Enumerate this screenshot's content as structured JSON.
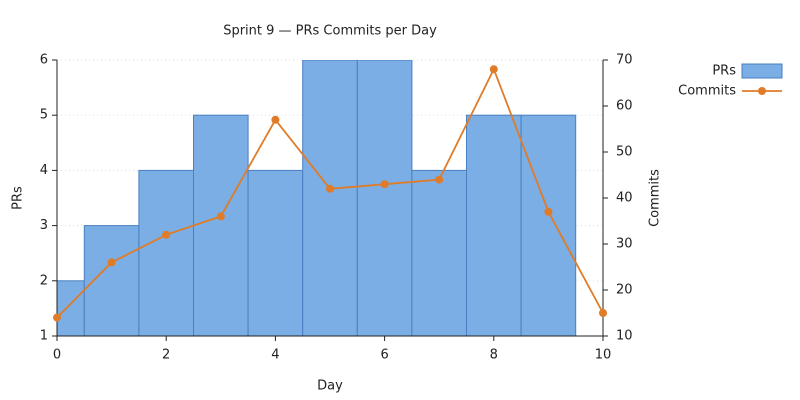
{
  "chart_data": {
    "type": "bar",
    "title": "Sprint 9 — PRs  Commits per Day",
    "x_label": "Day",
    "y_label": "PRs",
    "y2_label": "Commits",
    "xlim": [
      0,
      10
    ],
    "xticks": [
      0,
      2,
      4,
      6,
      8,
      10
    ],
    "ylim": [
      1,
      6
    ],
    "yticks": [
      1,
      2,
      3,
      4,
      5,
      6
    ],
    "y2lim": [
      10,
      70
    ],
    "y2ticks": [
      10,
      20,
      30,
      40,
      50,
      60,
      70
    ],
    "grid": true,
    "legend": "outside-top-right",
    "series": [
      {
        "name": "PRs",
        "type": "bar",
        "color": "#7aaee4",
        "edge_color": "#4a7fc0",
        "x": [
          0,
          1,
          2,
          3,
          4,
          5,
          6,
          7,
          8,
          9
        ],
        "values": [
          2,
          3,
          4,
          5,
          4,
          6,
          6,
          4,
          5,
          5
        ]
      },
      {
        "name": "Commits",
        "type": "line",
        "axis": "y2",
        "color": "#e07b28",
        "x": [
          0,
          1,
          2,
          3,
          4,
          5,
          6,
          7,
          8,
          9,
          10
        ],
        "values": [
          14,
          26,
          32,
          36,
          57,
          42,
          43,
          44,
          68,
          37,
          15
        ]
      }
    ]
  }
}
